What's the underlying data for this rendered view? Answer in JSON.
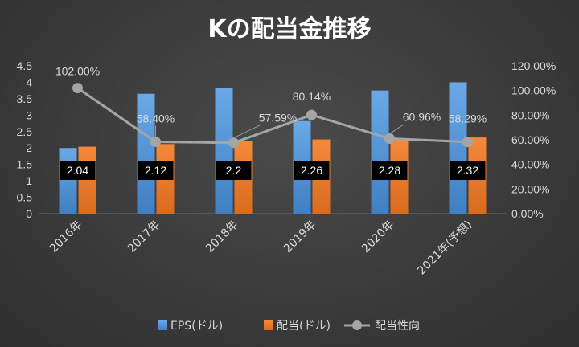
{
  "chart_data": {
    "type": "bar",
    "title": "Kの配当金推移",
    "categories": [
      "2016年",
      "2017年",
      "2018年",
      "2019年",
      "2020年",
      "2021年(予想)"
    ],
    "series": [
      {
        "name": "EPS(ドル)",
        "type": "bar",
        "axis": "left",
        "color": "#5b9bd5",
        "values": [
          2.0,
          3.65,
          3.82,
          2.82,
          3.75,
          4.0
        ]
      },
      {
        "name": "配当(ドル)",
        "type": "bar",
        "axis": "left",
        "color": "#ed7d31",
        "values": [
          2.04,
          2.12,
          2.2,
          2.26,
          2.28,
          2.32
        ],
        "data_labels": [
          "2.04",
          "2.12",
          "2.2",
          "2.26",
          "2.28",
          "2.32"
        ]
      },
      {
        "name": "配当性向",
        "type": "line",
        "axis": "right",
        "color": "#a5a5a5",
        "values": [
          102.0,
          58.4,
          57.59,
          80.14,
          60.96,
          58.29
        ],
        "data_labels": [
          "102.00%",
          "58.40%",
          "57.59%",
          "80.14%",
          "60.96%",
          "58.29%"
        ]
      }
    ],
    "y_left": {
      "range": [
        0,
        4.5
      ],
      "ticks": [
        "0",
        "0.5",
        "1",
        "1.5",
        "2",
        "2.5",
        "3",
        "3.5",
        "4",
        "4.5"
      ]
    },
    "y_right": {
      "range": [
        0,
        120
      ],
      "ticks": [
        "0.00%",
        "20.00%",
        "40.00%",
        "60.00%",
        "80.00%",
        "100.00%",
        "120.00%"
      ]
    },
    "grid": false,
    "legend_position": "bottom"
  }
}
